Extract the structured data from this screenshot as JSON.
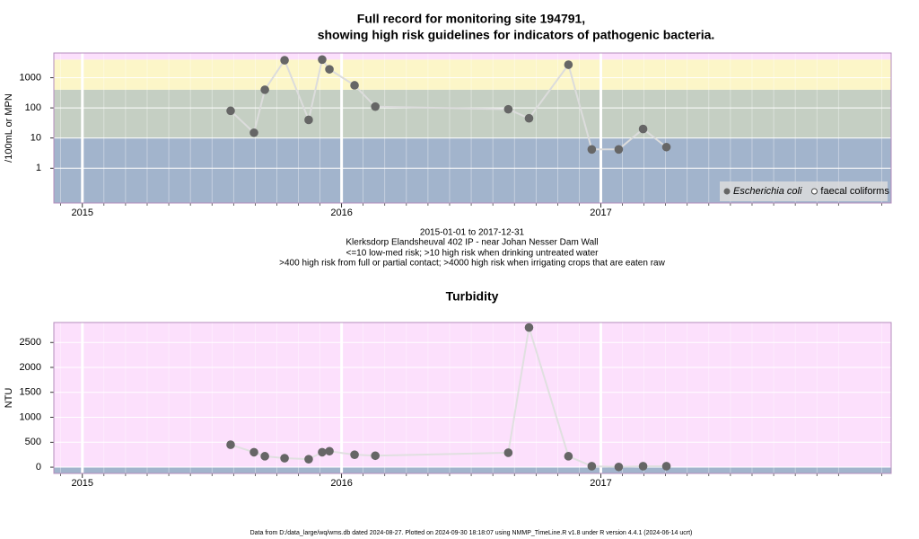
{
  "chart_data": [
    {
      "type": "line",
      "title": "Full record for monitoring site 194791,",
      "subtitle": "showing high risk guidelines for indicators of pathogenic bacteria.",
      "ylabel": "/100mL or MPN",
      "ylog": true,
      "xlim": [
        2014.89,
        2018.12
      ],
      "xticks": [
        2015,
        2016,
        2017
      ],
      "ylim": [
        0.07,
        6600
      ],
      "yticks": [
        1,
        10,
        100,
        1000
      ],
      "bands": [
        {
          "to": 10,
          "color": "#a2b4cc"
        },
        {
          "to": 400,
          "color": "#c5cfc3"
        },
        {
          "to": 4000,
          "color": "#fcf6c8"
        },
        {
          "to": 6600,
          "color": "#fce0fc"
        }
      ],
      "grid": true,
      "legend": "bottom right",
      "line_color": "#dcdcdc",
      "x": [
        2015.572,
        2015.662,
        2015.704,
        2015.78,
        2015.873,
        2015.925,
        2015.953,
        2016.05,
        2016.13,
        2016.643,
        2016.723,
        2016.875,
        2016.965,
        2017.069,
        2017.163,
        2017.253
      ],
      "series": [
        {
          "name": "Escherichia coli",
          "color": "#666666",
          "marker": "filled",
          "values": [
            80,
            15,
            400,
            3800,
            40,
            4000,
            1900,
            560,
            110,
            90,
            45,
            2700,
            4.2,
            4.2,
            20,
            5
          ]
        },
        {
          "name": "faecal coliforms",
          "color": "#444444",
          "marker": "open",
          "values": [
            null,
            null,
            null,
            null,
            null,
            null,
            null,
            null,
            null,
            null,
            null,
            null,
            null,
            null,
            null,
            null
          ]
        }
      ],
      "notes": [
        "2015-01-01 to 2017-12-31",
        "Klerksdorp Elandsheuval 402 IP - near Johan Nesser Dam Wall",
        "<=10 low-med risk; >10 high risk when drinking untreated water",
        ">400 high risk from full or partial contact; >4000 high risk when irrigating crops that are eaten raw"
      ]
    },
    {
      "type": "line",
      "title": "Turbidity",
      "ylabel": "NTU",
      "ylog": false,
      "xlim": [
        2014.89,
        2018.12
      ],
      "xticks": [
        2015,
        2016,
        2017
      ],
      "ylim": [
        -125,
        2900
      ],
      "yticks": [
        0,
        500,
        1000,
        1500,
        2000,
        2500
      ],
      "bands": [
        {
          "to": 5,
          "color": "#a2b4cc"
        },
        {
          "to": 2900,
          "color": "#fce0fc"
        }
      ],
      "grid": true,
      "line_color": "#e0e0e0",
      "x": [
        2015.572,
        2015.662,
        2015.704,
        2015.78,
        2015.873,
        2015.925,
        2015.953,
        2016.05,
        2016.13,
        2016.643,
        2016.723,
        2016.875,
        2016.965,
        2017.069,
        2017.163,
        2017.253
      ],
      "series": [
        {
          "name": "Turbidity",
          "color": "#666666",
          "marker": "filled",
          "values": [
            450,
            300,
            220,
            180,
            160,
            300,
            320,
            250,
            230,
            290,
            2800,
            220,
            20,
            5,
            20,
            20
          ]
        }
      ]
    }
  ],
  "footer": "Data from D:/data_large/wq/wms.db dated 2024-08-27. Plotted on 2024-09-30 18:18:07 using NMMP_TimeLine.R v1.8 under R version 4.4.1 (2024-06-14 ucrt)"
}
